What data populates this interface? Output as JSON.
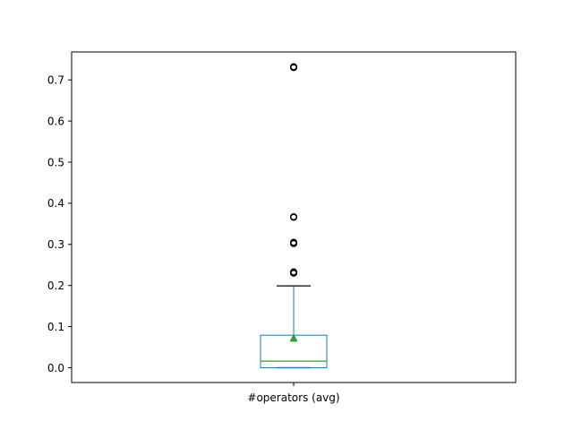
{
  "chart_data": {
    "type": "box",
    "categories": [
      "#operators (avg)"
    ],
    "box": {
      "whisker_low": 0.0,
      "q1": 0.0,
      "median": 0.016,
      "mean": 0.072,
      "q3": 0.079,
      "whisker_high": 0.199,
      "outliers": [
        0.23,
        0.233,
        0.302,
        0.305,
        0.366,
        0.367,
        0.73,
        0.732
      ]
    },
    "yticks": [
      "0.0",
      "0.1",
      "0.2",
      "0.3",
      "0.4",
      "0.5",
      "0.6",
      "0.7"
    ],
    "ylim": [
      -0.036,
      0.768
    ],
    "grid": false,
    "colors": {
      "box": "#1f77b4",
      "median": "#2ca02c",
      "mean_marker": "#2ca02c",
      "outlier": "#000000",
      "cap": "#000000"
    }
  }
}
